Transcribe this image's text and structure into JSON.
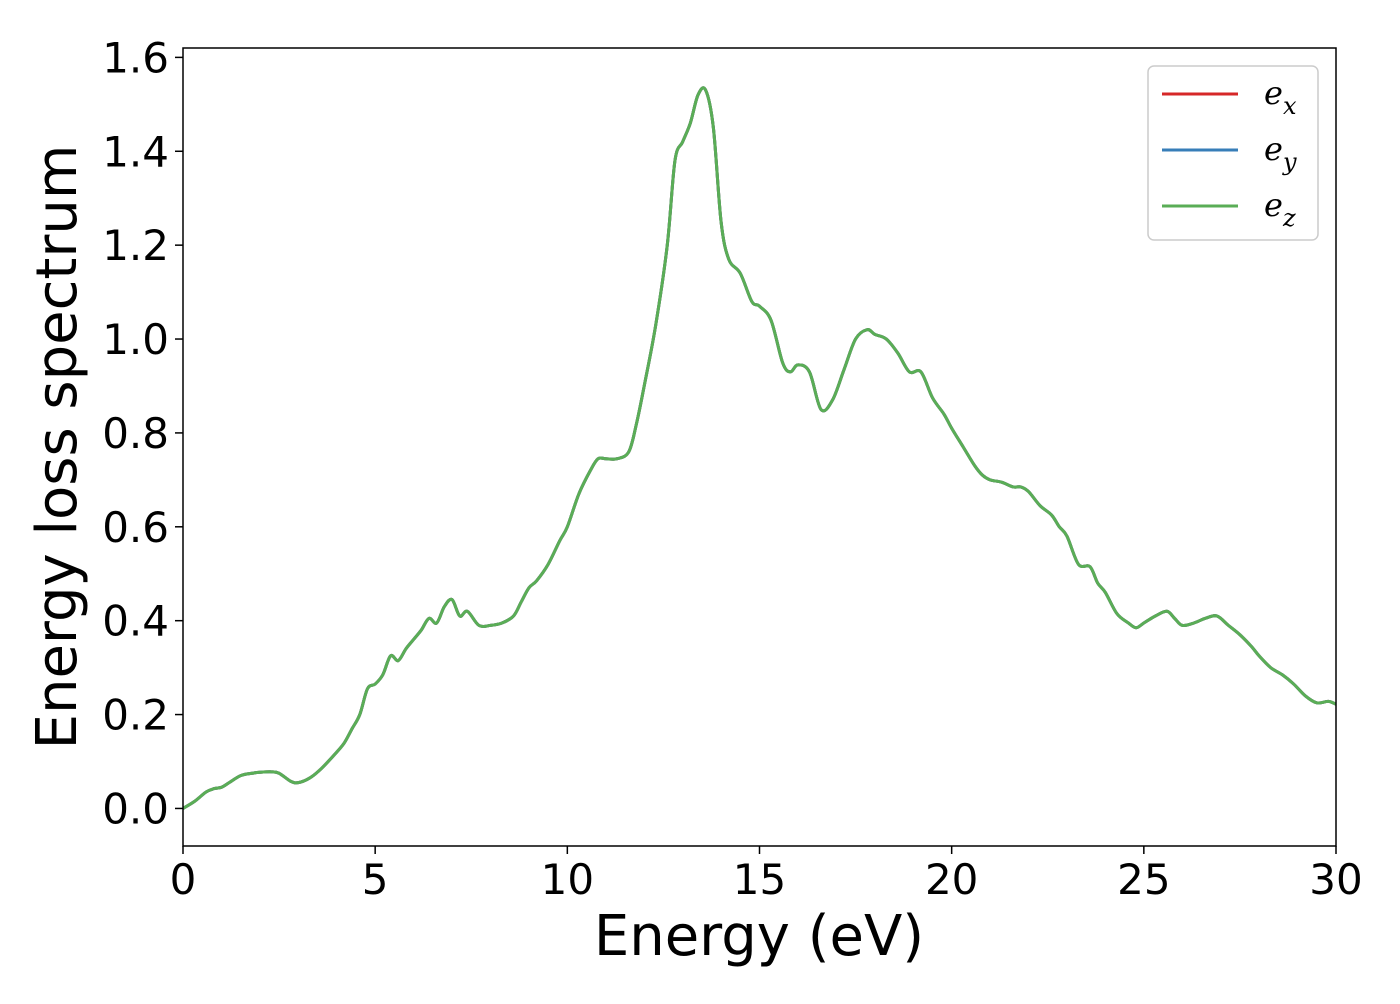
{
  "chart_data": {
    "type": "line",
    "title": "",
    "xlabel": "Energy (eV)",
    "ylabel": "Energy loss spectrum",
    "xlim": [
      0,
      30
    ],
    "ylim": [
      -0.08,
      1.62
    ],
    "xticks": [
      0,
      5,
      10,
      15,
      20,
      25,
      30
    ],
    "xtick_labels": [
      "0",
      "5",
      "10",
      "15",
      "20",
      "25",
      "30"
    ],
    "yticks": [
      0.0,
      0.2,
      0.4,
      0.6,
      0.8,
      1.0,
      1.2,
      1.4,
      1.6
    ],
    "ytick_labels": [
      "0.0",
      "0.2",
      "0.4",
      "0.6",
      "0.8",
      "1.0",
      "1.2",
      "1.4",
      "1.6"
    ],
    "grid": false,
    "legend_position": "top-right",
    "x": [
      0,
      0.3,
      0.6,
      0.8,
      1.0,
      1.2,
      1.5,
      1.8,
      2.0,
      2.3,
      2.5,
      2.8,
      3.0,
      3.3,
      3.6,
      4.0,
      4.2,
      4.4,
      4.6,
      4.8,
      5.0,
      5.2,
      5.4,
      5.6,
      5.8,
      6.0,
      6.2,
      6.4,
      6.6,
      6.8,
      7.0,
      7.2,
      7.4,
      7.7,
      8.0,
      8.3,
      8.6,
      8.8,
      9.0,
      9.2,
      9.5,
      9.8,
      10.0,
      10.3,
      10.6,
      10.8,
      11.0,
      11.3,
      11.6,
      11.8,
      12.0,
      12.3,
      12.6,
      12.8,
      13.0,
      13.2,
      13.4,
      13.6,
      13.8,
      14.0,
      14.2,
      14.5,
      14.8,
      15.0,
      15.3,
      15.6,
      15.8,
      16.0,
      16.3,
      16.6,
      16.9,
      17.2,
      17.5,
      17.8,
      18.0,
      18.3,
      18.6,
      18.9,
      19.2,
      19.5,
      19.8,
      20.0,
      20.3,
      20.6,
      20.8,
      21.0,
      21.3,
      21.6,
      21.8,
      22.0,
      22.3,
      22.6,
      22.8,
      23.0,
      23.3,
      23.6,
      23.8,
      24.0,
      24.3,
      24.6,
      24.8,
      25.0,
      25.3,
      25.6,
      25.8,
      26.0,
      26.3,
      26.6,
      26.9,
      27.2,
      27.5,
      27.8,
      28.0,
      28.3,
      28.6,
      28.9,
      29.2,
      29.5,
      29.8,
      30.0
    ],
    "series": [
      {
        "name": "e_x",
        "name_base": "e",
        "name_sub": "x",
        "color": "#d62728",
        "y": [
          0.0,
          0.015,
          0.035,
          0.042,
          0.045,
          0.055,
          0.07,
          0.075,
          0.077,
          0.078,
          0.075,
          0.058,
          0.055,
          0.065,
          0.085,
          0.12,
          0.14,
          0.17,
          0.2,
          0.255,
          0.265,
          0.285,
          0.325,
          0.315,
          0.34,
          0.36,
          0.38,
          0.405,
          0.395,
          0.43,
          0.445,
          0.41,
          0.42,
          0.39,
          0.39,
          0.395,
          0.41,
          0.44,
          0.47,
          0.485,
          0.52,
          0.57,
          0.6,
          0.67,
          0.72,
          0.745,
          0.745,
          0.745,
          0.76,
          0.82,
          0.9,
          1.03,
          1.2,
          1.38,
          1.42,
          1.46,
          1.52,
          1.53,
          1.45,
          1.25,
          1.17,
          1.14,
          1.08,
          1.07,
          1.04,
          0.95,
          0.93,
          0.945,
          0.93,
          0.85,
          0.87,
          0.935,
          1.0,
          1.02,
          1.01,
          1.0,
          0.97,
          0.93,
          0.93,
          0.875,
          0.84,
          0.81,
          0.77,
          0.73,
          0.71,
          0.7,
          0.695,
          0.685,
          0.685,
          0.675,
          0.645,
          0.625,
          0.6,
          0.58,
          0.52,
          0.515,
          0.48,
          0.46,
          0.415,
          0.395,
          0.385,
          0.395,
          0.41,
          0.42,
          0.405,
          0.39,
          0.395,
          0.405,
          0.41,
          0.39,
          0.37,
          0.345,
          0.325,
          0.3,
          0.285,
          0.265,
          0.24,
          0.225,
          0.228,
          0.222
        ]
      },
      {
        "name": "e_y",
        "name_base": "e",
        "name_sub": "y",
        "color": "#377eb8",
        "y": [
          0.0,
          0.015,
          0.035,
          0.042,
          0.045,
          0.055,
          0.07,
          0.075,
          0.077,
          0.078,
          0.075,
          0.058,
          0.055,
          0.065,
          0.085,
          0.12,
          0.14,
          0.17,
          0.2,
          0.255,
          0.265,
          0.285,
          0.325,
          0.315,
          0.34,
          0.36,
          0.38,
          0.405,
          0.395,
          0.43,
          0.445,
          0.41,
          0.42,
          0.39,
          0.39,
          0.395,
          0.41,
          0.44,
          0.47,
          0.485,
          0.52,
          0.57,
          0.6,
          0.67,
          0.72,
          0.745,
          0.745,
          0.745,
          0.76,
          0.82,
          0.9,
          1.03,
          1.2,
          1.38,
          1.42,
          1.46,
          1.52,
          1.53,
          1.45,
          1.25,
          1.17,
          1.14,
          1.08,
          1.07,
          1.04,
          0.95,
          0.93,
          0.945,
          0.93,
          0.85,
          0.87,
          0.935,
          1.0,
          1.02,
          1.01,
          1.0,
          0.97,
          0.93,
          0.93,
          0.875,
          0.84,
          0.81,
          0.77,
          0.73,
          0.71,
          0.7,
          0.695,
          0.685,
          0.685,
          0.675,
          0.645,
          0.625,
          0.6,
          0.58,
          0.52,
          0.515,
          0.48,
          0.46,
          0.415,
          0.395,
          0.385,
          0.395,
          0.41,
          0.42,
          0.405,
          0.39,
          0.395,
          0.405,
          0.41,
          0.39,
          0.37,
          0.345,
          0.325,
          0.3,
          0.285,
          0.265,
          0.24,
          0.225,
          0.228,
          0.222
        ]
      },
      {
        "name": "e_z",
        "name_base": "e",
        "name_sub": "z",
        "color": "#5aad56",
        "y": [
          0.0,
          0.015,
          0.035,
          0.042,
          0.045,
          0.055,
          0.07,
          0.075,
          0.077,
          0.078,
          0.075,
          0.058,
          0.055,
          0.065,
          0.085,
          0.12,
          0.14,
          0.17,
          0.2,
          0.255,
          0.265,
          0.285,
          0.325,
          0.315,
          0.34,
          0.36,
          0.38,
          0.405,
          0.395,
          0.43,
          0.445,
          0.41,
          0.42,
          0.39,
          0.39,
          0.395,
          0.41,
          0.44,
          0.47,
          0.485,
          0.52,
          0.57,
          0.6,
          0.67,
          0.72,
          0.745,
          0.745,
          0.745,
          0.76,
          0.82,
          0.9,
          1.03,
          1.2,
          1.38,
          1.42,
          1.46,
          1.52,
          1.53,
          1.45,
          1.25,
          1.17,
          1.14,
          1.08,
          1.07,
          1.04,
          0.95,
          0.93,
          0.945,
          0.93,
          0.85,
          0.87,
          0.935,
          1.0,
          1.02,
          1.01,
          1.0,
          0.97,
          0.93,
          0.93,
          0.875,
          0.84,
          0.81,
          0.77,
          0.73,
          0.71,
          0.7,
          0.695,
          0.685,
          0.685,
          0.675,
          0.645,
          0.625,
          0.6,
          0.58,
          0.52,
          0.515,
          0.48,
          0.46,
          0.415,
          0.395,
          0.385,
          0.395,
          0.41,
          0.42,
          0.405,
          0.39,
          0.395,
          0.405,
          0.41,
          0.39,
          0.37,
          0.345,
          0.325,
          0.3,
          0.285,
          0.265,
          0.24,
          0.225,
          0.228,
          0.222
        ]
      }
    ]
  }
}
